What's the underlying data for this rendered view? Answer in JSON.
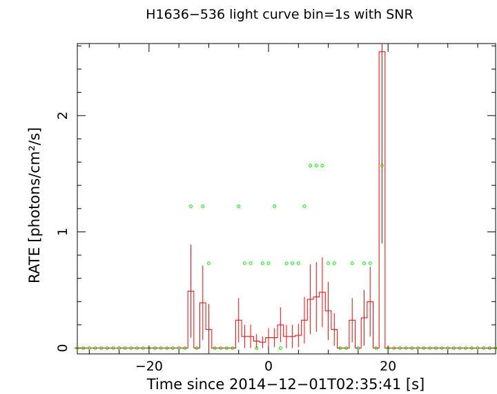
{
  "chart_data": {
    "type": "line",
    "title": "H1636−536 light curve bin=1s with SNR",
    "xlabel": "Time since 2014−12−01T02:35:41 [s]",
    "ylabel": "RATE [photons/cm²/s]",
    "xlim": [
      -32,
      38
    ],
    "ylim": [
      -0.05,
      2.62
    ],
    "x_ticks": [
      -20,
      0,
      20
    ],
    "x_tick_labels": [
      "−20",
      "0",
      "20"
    ],
    "y_ticks": [
      0,
      1,
      2
    ],
    "y_tick_labels": [
      "0",
      "1",
      "2"
    ],
    "grid": false,
    "bin_width": 1,
    "series": [
      {
        "kind": "step-with-errorbars",
        "color": "#ff0000",
        "bins": [
          {
            "x": -13,
            "y": 0.49,
            "err": 0.4
          },
          {
            "x": -11,
            "y": 0.39,
            "err": 0.32
          },
          {
            "x": -10,
            "y": 0.16,
            "err": 0.22
          },
          {
            "x": -5,
            "y": 0.24,
            "err": 0.19
          },
          {
            "x": -4,
            "y": 0.1,
            "err": 0.1
          },
          {
            "x": -3,
            "y": 0.1,
            "err": 0.1
          },
          {
            "x": -2,
            "y": 0.06,
            "err": 0.06
          },
          {
            "x": -1,
            "y": 0.05,
            "err": 0.05
          },
          {
            "x": 0,
            "y": 0.09,
            "err": 0.08
          },
          {
            "x": 1,
            "y": 0.09,
            "err": 0.08
          },
          {
            "x": 2,
            "y": 0.2,
            "err": 0.15
          },
          {
            "x": 3,
            "y": 0.1,
            "err": 0.1
          },
          {
            "x": 4,
            "y": 0.1,
            "err": 0.1
          },
          {
            "x": 5,
            "y": 0.11,
            "err": 0.1
          },
          {
            "x": 6,
            "y": 0.24,
            "err": 0.2
          },
          {
            "x": 7,
            "y": 0.42,
            "err": 0.3
          },
          {
            "x": 8,
            "y": 0.44,
            "err": 0.3
          },
          {
            "x": 9,
            "y": 0.48,
            "err": 0.3
          },
          {
            "x": 10,
            "y": 0.32,
            "err": 0.25
          },
          {
            "x": 11,
            "y": 0.16,
            "err": 0.14
          },
          {
            "x": 14,
            "y": 0.24,
            "err": 0.19
          },
          {
            "x": 16,
            "y": 0.26,
            "err": 0.24
          },
          {
            "x": 17,
            "y": 0.4,
            "err": 0.3
          },
          {
            "x": 19,
            "y": 2.55,
            "err": 1.65
          }
        ]
      },
      {
        "kind": "points",
        "color": "#00ff00",
        "points": [
          {
            "x": -13,
            "y": 1.22
          },
          {
            "x": -11,
            "y": 1.22
          },
          {
            "x": -10,
            "y": 0.73
          },
          {
            "x": -5,
            "y": 1.22
          },
          {
            "x": -4,
            "y": 0.73
          },
          {
            "x": -3,
            "y": 0.73
          },
          {
            "x": -1,
            "y": 0.73
          },
          {
            "x": 0,
            "y": 0.73
          },
          {
            "x": 1,
            "y": 1.22
          },
          {
            "x": 3,
            "y": 0.73
          },
          {
            "x": 4,
            "y": 0.73
          },
          {
            "x": 5,
            "y": 0.73
          },
          {
            "x": 6,
            "y": 1.22
          },
          {
            "x": 7,
            "y": 1.57
          },
          {
            "x": 8,
            "y": 1.57
          },
          {
            "x": 9,
            "y": 1.57
          },
          {
            "x": 10,
            "y": 0.73
          },
          {
            "x": 11,
            "y": 0.73
          },
          {
            "x": 14,
            "y": 0.73
          },
          {
            "x": 16,
            "y": 0.73
          },
          {
            "x": 17,
            "y": 0.73
          },
          {
            "x": 19,
            "y": 1.57
          }
        ]
      }
    ]
  }
}
